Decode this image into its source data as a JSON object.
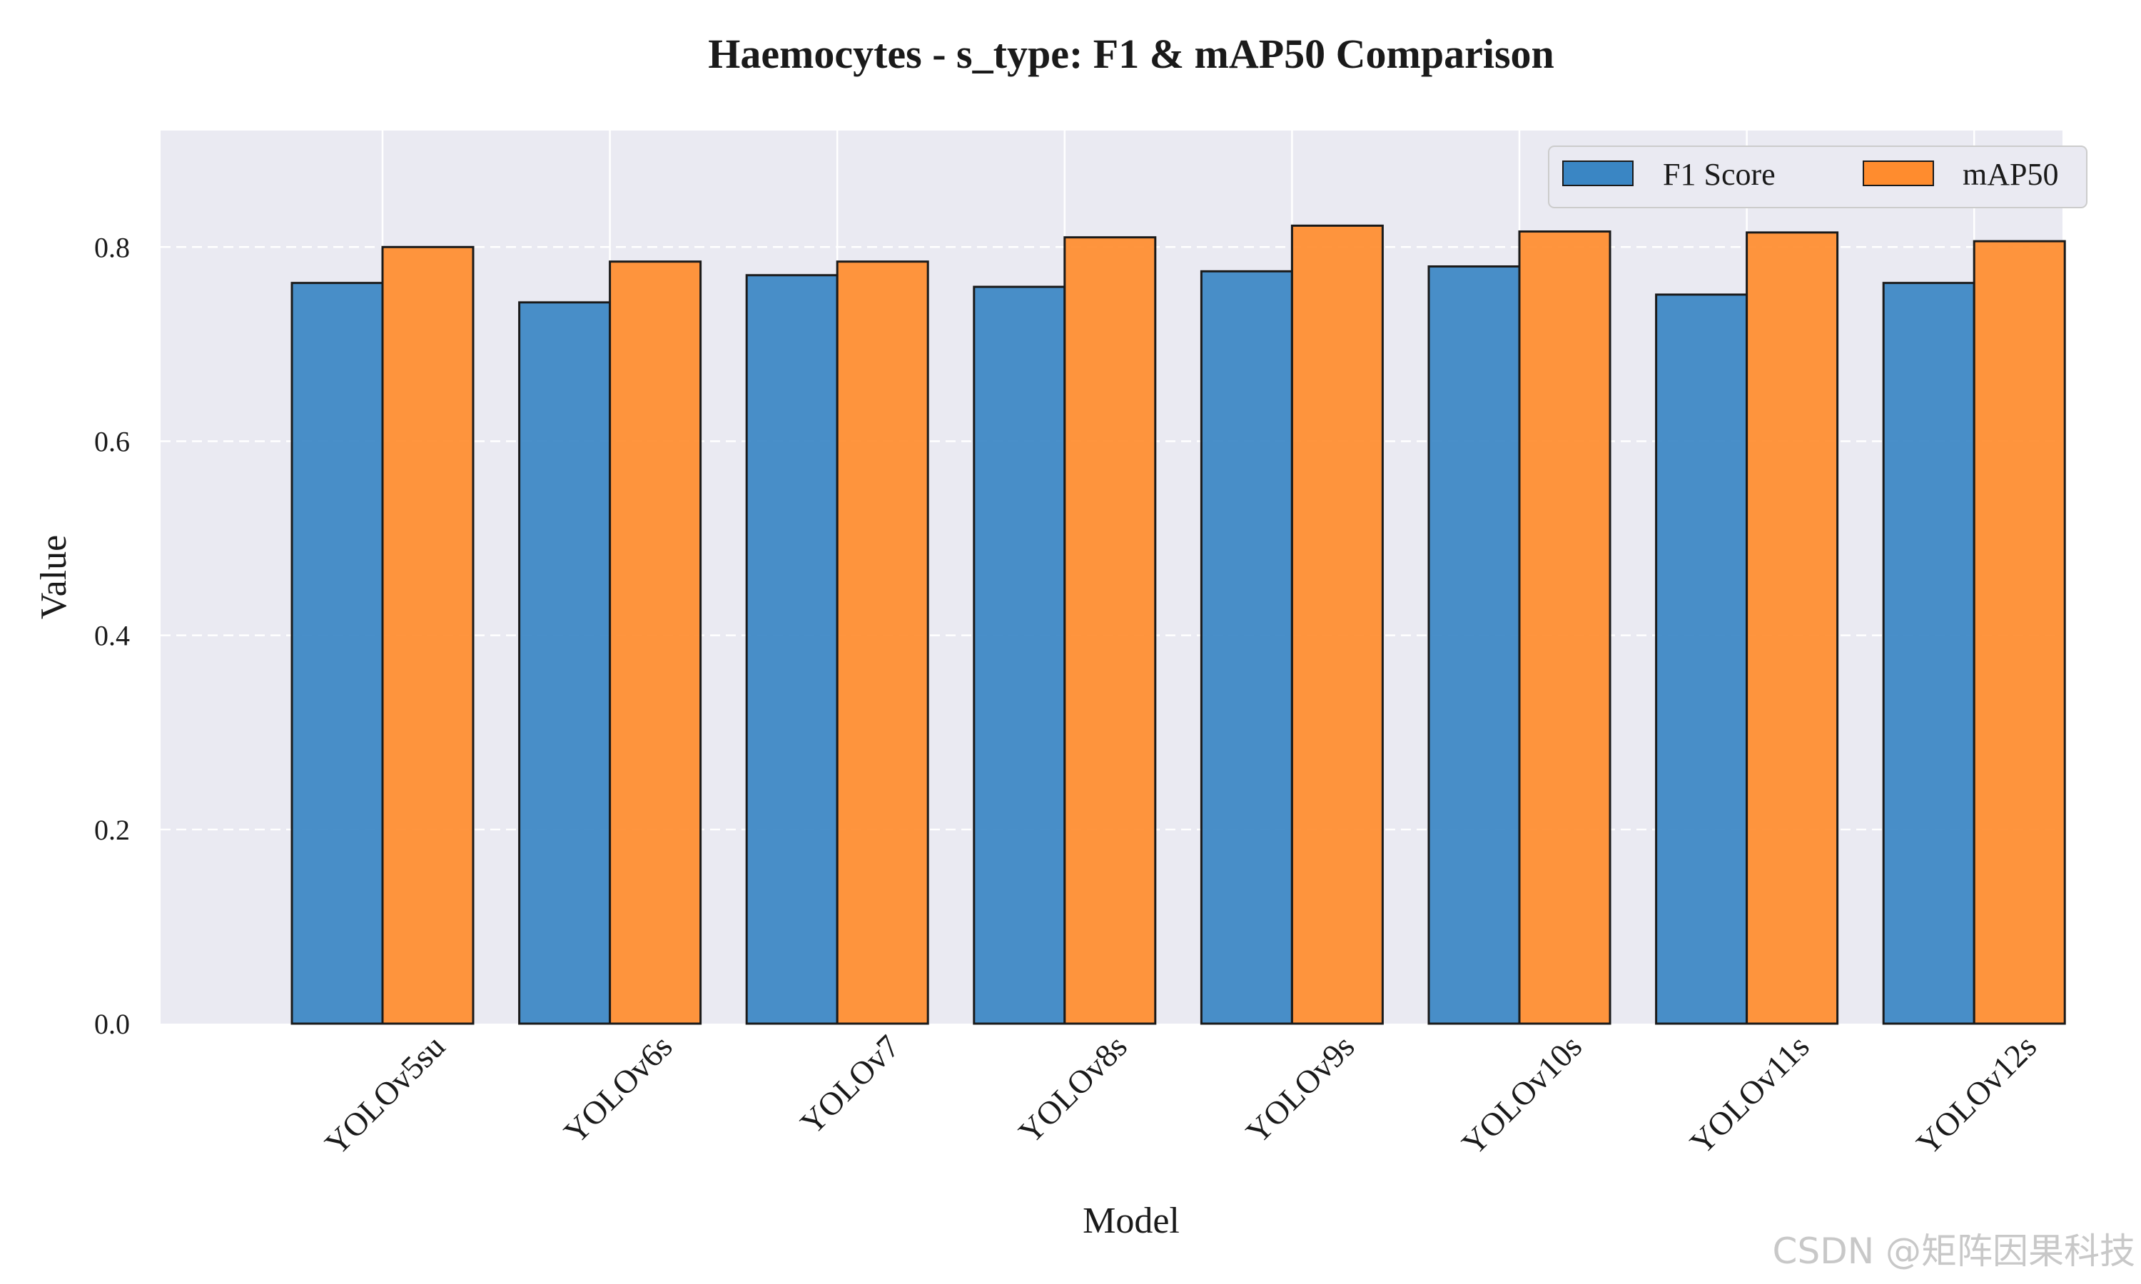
{
  "chart_data": {
    "type": "bar",
    "title": "Haemocytes - s_type: F1 & mAP50 Comparison",
    "xlabel": "Model",
    "ylabel": "Value",
    "categories": [
      "YOLOv5su",
      "YOLOv6s",
      "YOLOv7",
      "YOLOv8s",
      "YOLOv9s",
      "YOLOv10s",
      "YOLOv11s",
      "YOLOv12s"
    ],
    "series": [
      {
        "name": "F1 Score",
        "color": "#3a86c4",
        "values": [
          0.763,
          0.743,
          0.771,
          0.759,
          0.775,
          0.78,
          0.751,
          0.763
        ]
      },
      {
        "name": "mAP50",
        "color": "#ff8c2e",
        "values": [
          0.8,
          0.785,
          0.785,
          0.81,
          0.822,
          0.816,
          0.815,
          0.806
        ]
      }
    ],
    "ylim": [
      0,
      0.92
    ],
    "yticks": [
      0.0,
      0.2,
      0.4,
      0.6,
      0.8
    ],
    "ytick_labels": [
      "0.0",
      "0.2",
      "0.4",
      "0.6",
      "0.8"
    ],
    "grid": true,
    "legend_position": "top-right",
    "background_color": "#eaeaf2"
  },
  "watermark": "CSDN @矩阵因果科技"
}
